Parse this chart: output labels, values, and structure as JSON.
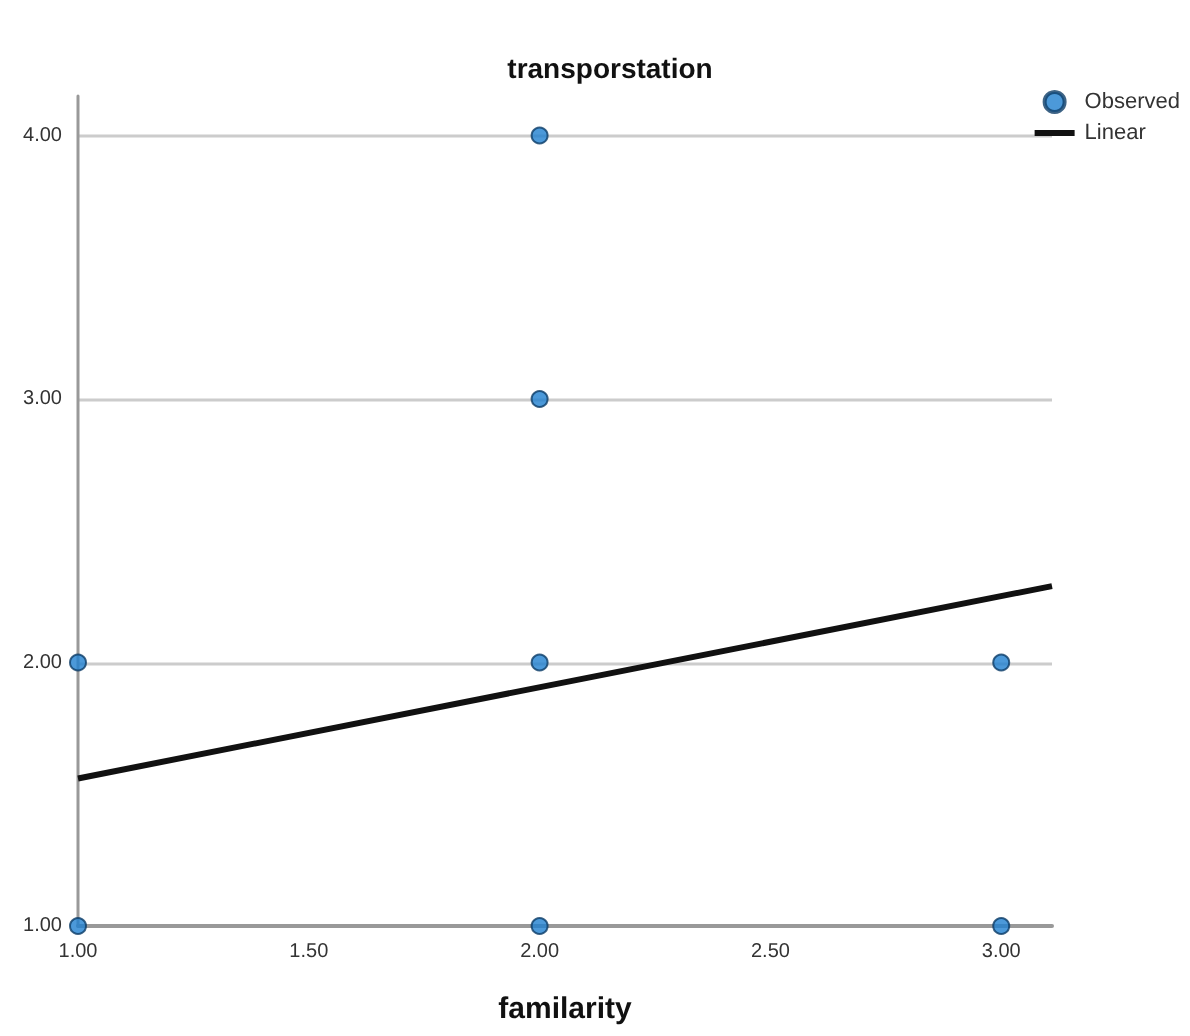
{
  "chart_data": {
    "type": "scatter",
    "title": "transporstation",
    "xlabel": "familarity",
    "xlim": [
      1,
      3.11
    ],
    "xticks": [
      {
        "value": 1,
        "label": "1.00"
      },
      {
        "value": 1.5,
        "label": "1.50"
      },
      {
        "value": 2,
        "label": "2.00"
      },
      {
        "value": 2.5,
        "label": "2.50"
      },
      {
        "value": 3,
        "label": "3.00"
      }
    ],
    "ylim": [
      1,
      4.15
    ],
    "yticks": [
      {
        "value": 1,
        "label": "1.00"
      },
      {
        "value": 2,
        "label": "2.00"
      },
      {
        "value": 3,
        "label": "3.00"
      },
      {
        "value": 4,
        "label": "4.00"
      }
    ],
    "series": [
      {
        "name": "Observed",
        "color": "#1f7fd0",
        "x": [
          1,
          1,
          2,
          2,
          2,
          2,
          3,
          3
        ],
        "values": [
          2,
          1,
          4,
          3,
          2,
          1,
          2,
          1
        ],
        "marker": "circle"
      },
      {
        "name": "Linear",
        "type": "line",
        "color": "#111111",
        "x": [
          1,
          3.11
        ],
        "values": [
          1.56,
          2.29
        ],
        "marker": "none",
        "line_style": "solid"
      }
    ],
    "grid": "y",
    "legend": "top right"
  }
}
